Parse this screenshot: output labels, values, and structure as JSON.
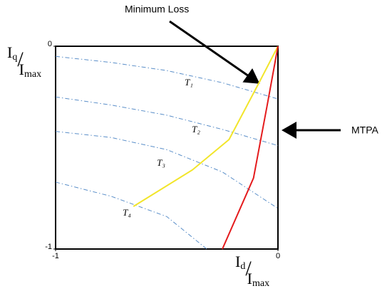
{
  "chart_data": {
    "type": "line",
    "xlabel_parts": [
      "I",
      "d",
      "/",
      "I",
      "max"
    ],
    "ylabel_parts": [
      "I",
      "q",
      "/",
      "I",
      "max"
    ],
    "xlim": [
      -1,
      0
    ],
    "ylim": [
      -1,
      0
    ],
    "xticks": [
      -1,
      0
    ],
    "yticks": [
      -1,
      0
    ],
    "grid": false,
    "series": [
      {
        "name": "T₁",
        "color": "#5b8fc9",
        "linestyle": "dashdot",
        "x": [
          -1,
          -0.75,
          -0.5,
          -0.25,
          0
        ],
        "values": [
          -0.05,
          -0.08,
          -0.12,
          -0.18,
          -0.26
        ]
      },
      {
        "name": "T₂",
        "color": "#5b8fc9",
        "linestyle": "dashdot",
        "x": [
          -1,
          -0.75,
          -0.5,
          -0.25,
          0
        ],
        "values": [
          -0.25,
          -0.29,
          -0.34,
          -0.41,
          -0.49
        ]
      },
      {
        "name": "T₃",
        "color": "#5b8fc9",
        "linestyle": "dashdot",
        "x": [
          -1,
          -0.75,
          -0.5,
          -0.25,
          0
        ],
        "values": [
          -0.42,
          -0.45,
          -0.51,
          -0.62,
          -0.8
        ]
      },
      {
        "name": "T₄",
        "color": "#5b8fc9",
        "linestyle": "dashdot",
        "x": [
          -1,
          -0.75,
          -0.5,
          -0.32
        ],
        "values": [
          -0.67,
          -0.74,
          -0.84,
          -1
        ]
      },
      {
        "name": "Minimum Loss",
        "color": "#f2e52a",
        "linestyle": "solid",
        "x": [
          0,
          -0.09,
          -0.22,
          -0.385,
          -0.65
        ],
        "values": [
          0,
          -0.19,
          -0.46,
          -0.61,
          -0.79
        ]
      },
      {
        "name": "MTPA",
        "color": "#e41a1c",
        "linestyle": "solid",
        "x": [
          0,
          -0.05,
          -0.11,
          -0.25
        ],
        "values": [
          0,
          -0.3,
          -0.65,
          -1
        ]
      }
    ]
  }
}
